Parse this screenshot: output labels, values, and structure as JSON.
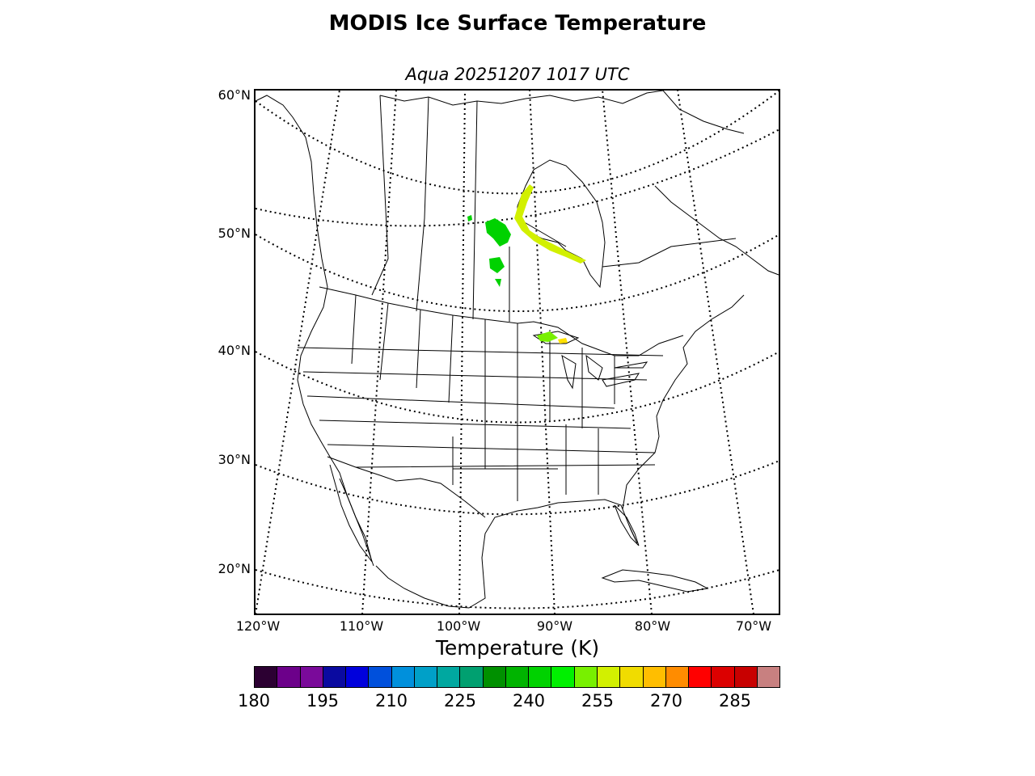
{
  "title": "MODIS Ice Surface Temperature",
  "subtitle": "Aqua 20251207 1017 UTC",
  "map": {
    "lat_labels": [
      "60°N",
      "50°N",
      "40°N",
      "30°N",
      "20°N"
    ],
    "lon_labels": [
      "120°W",
      "110°W",
      "100°W",
      "90°W",
      "80°W",
      "70°W"
    ],
    "land_color": "#ffffff",
    "coastline_color": "#000000"
  },
  "colorbar": {
    "label": "Temperature (K)",
    "ticks": [
      "180",
      "195",
      "210",
      "225",
      "240",
      "255",
      "270",
      "285"
    ],
    "colors": [
      "#2c0032",
      "#6c008a",
      "#7a0a9a",
      "#0a0aa0",
      "#0000dc",
      "#0050dc",
      "#0090dc",
      "#00a0c8",
      "#00a8a0",
      "#00a070",
      "#009000",
      "#00b400",
      "#00d200",
      "#00f000",
      "#78f000",
      "#d2f000",
      "#f0dc00",
      "#ffbe00",
      "#ff8c00",
      "#ff0000",
      "#dc0000",
      "#c80000",
      "#c88080"
    ]
  }
}
